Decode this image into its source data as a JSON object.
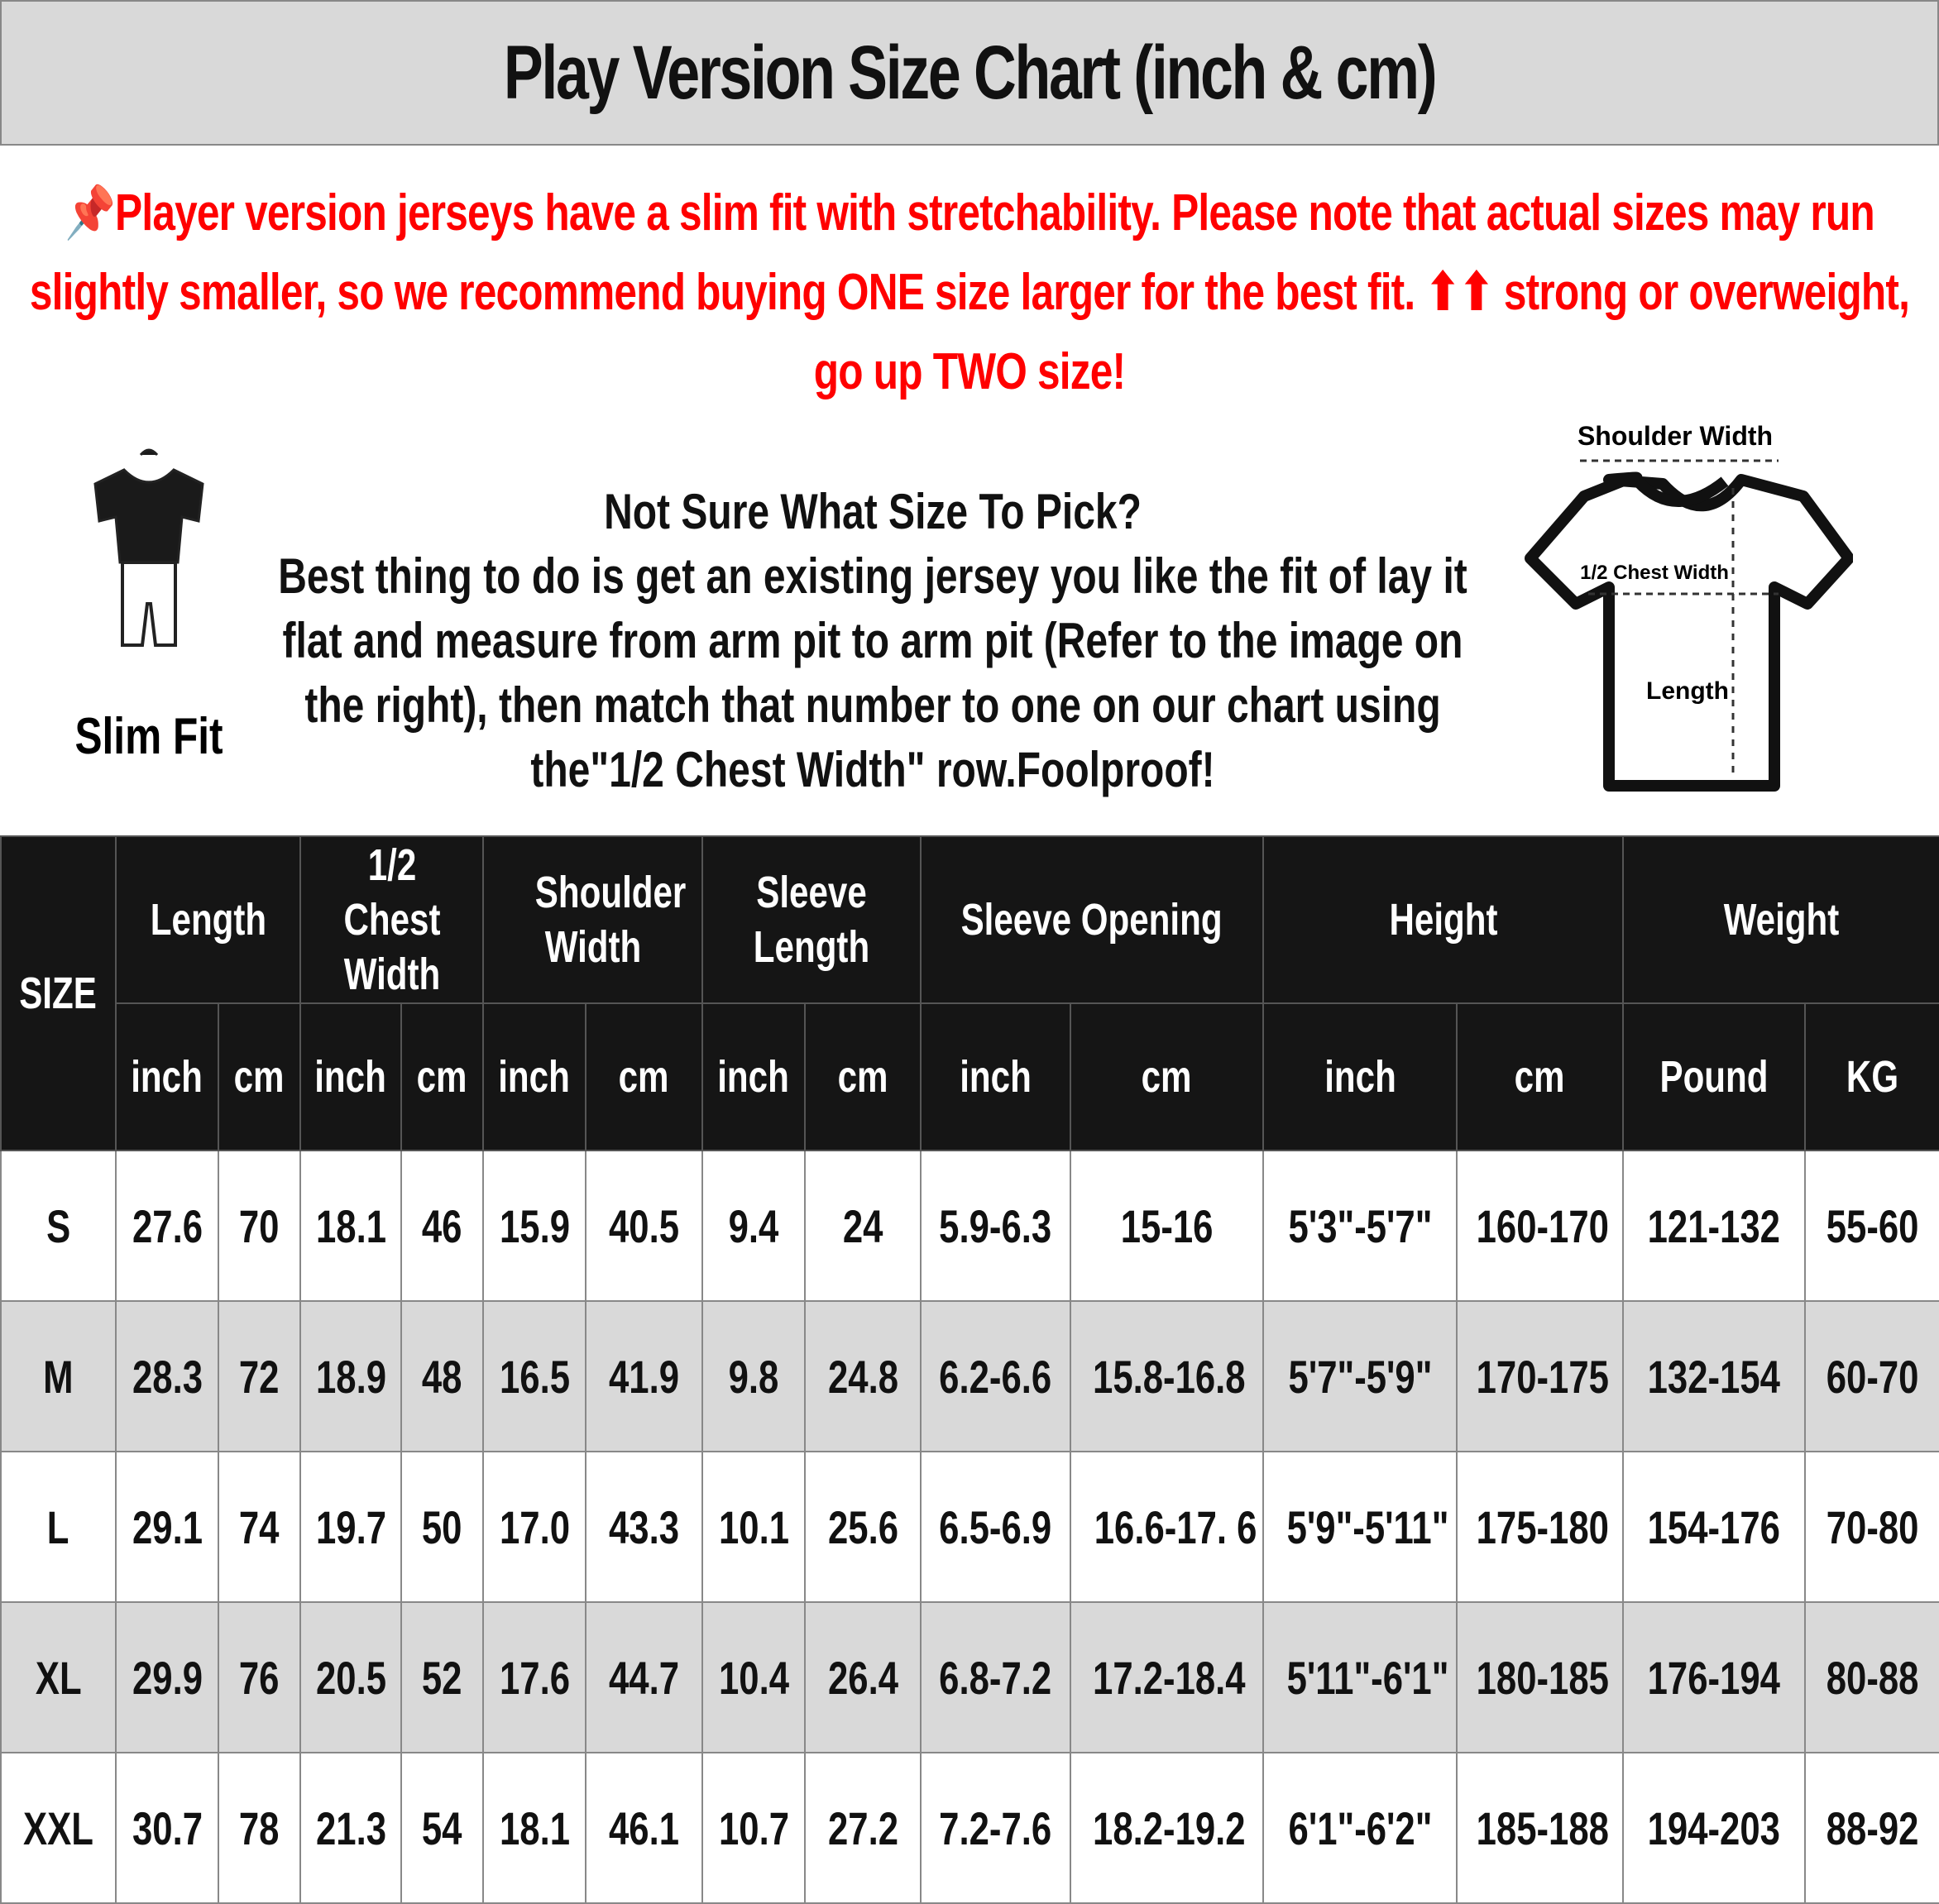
{
  "title": "Play Version Size Chart (inch & cm)",
  "notice": {
    "icon": "pushpin-icon",
    "text": "Player version jerseys have a slim fit with stretchability. Please note that actual sizes may run slightly smaller, so we recommend buying ONE size larger for the best fit. ⬆⬆ strong or overweight, go up TWO size!",
    "color": "#ff0000"
  },
  "fit": {
    "label": "Slim Fit"
  },
  "advice": {
    "heading": "Not Sure What Size To Pick?",
    "body": "Best thing to do is get an existing jersey you like the fit of lay it flat and measure from arm pit to arm pit (Refer to the image on the right), then match that number to one on our chart using the\"1/2 Chest Width\" row.Foolproof!"
  },
  "diagram": {
    "shoulder": "Shoulder Width",
    "chest": "1/2 Chest Width",
    "length": "Length"
  },
  "table": {
    "size_header": "SIZE",
    "groups": [
      "Length",
      "1/2 Chest Width",
      "Shoulder Width",
      "Sleeve Length",
      "Sleeve Opening",
      "Height",
      "Weight"
    ],
    "units": [
      "inch",
      "cm",
      "inch",
      "cm",
      "inch",
      "cm",
      "inch",
      "cm",
      "inch",
      "cm",
      "inch",
      "cm",
      "Pound",
      "KG"
    ],
    "rows": [
      [
        "S",
        "27.6",
        "70",
        "18.1",
        "46",
        "15.9",
        "40.5",
        "9.4",
        "24",
        "5.9-6.3",
        "15-16",
        "5'3\"-5'7\"",
        "160-170",
        "121-132",
        "55-60"
      ],
      [
        "M",
        "28.3",
        "72",
        "18.9",
        "48",
        "16.5",
        "41.9",
        "9.8",
        "24.8",
        "6.2-6.6",
        "15.8-16.8",
        "5'7\"-5'9\"",
        "170-175",
        "132-154",
        "60-70"
      ],
      [
        "L",
        "29.1",
        "74",
        "19.7",
        "50",
        "17.0",
        "43.3",
        "10.1",
        "25.6",
        "6.5-6.9",
        "16.6-17. 6",
        "5'9\"-5'11\"",
        "175-180",
        "154-176",
        "70-80"
      ],
      [
        "XL",
        "29.9",
        "76",
        "20.5",
        "52",
        "17.6",
        "44.7",
        "10.4",
        "26.4",
        "6.8-7.2",
        "17.2-18.4",
        "5'11\"-6'1\"",
        "180-185",
        "176-194",
        "80-88"
      ],
      [
        "XXL",
        "30.7",
        "78",
        "21.3",
        "54",
        "18.1",
        "46.1",
        "10.7",
        "27.2",
        "7.2-7.6",
        "18.2-19.2",
        "6'1\"-6'2\"",
        "185-188",
        "194-203",
        "88-92"
      ]
    ]
  }
}
